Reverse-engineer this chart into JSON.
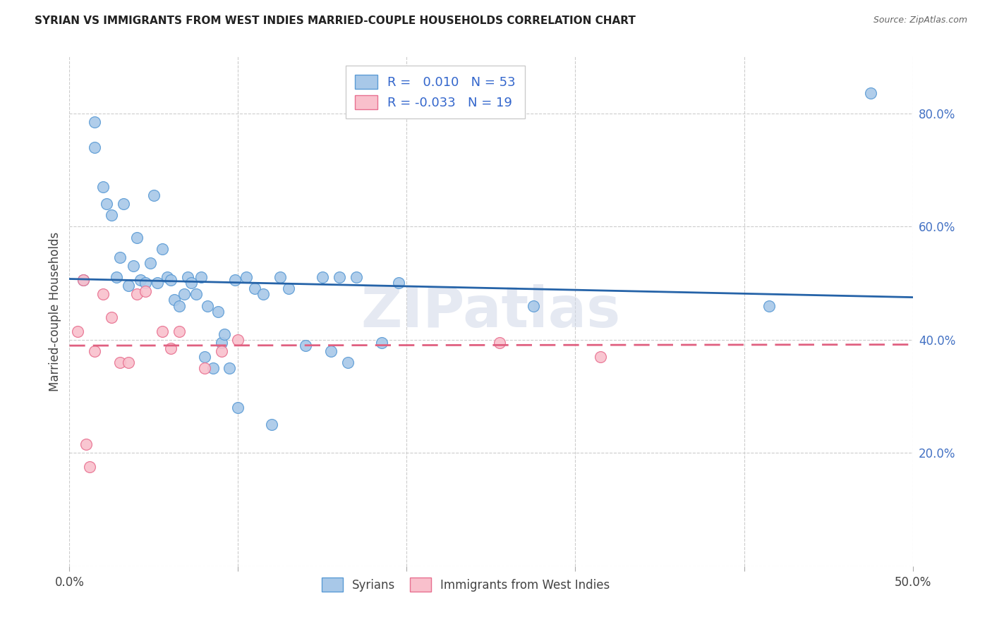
{
  "title": "SYRIAN VS IMMIGRANTS FROM WEST INDIES MARRIED-COUPLE HOUSEHOLDS CORRELATION CHART",
  "source": "Source: ZipAtlas.com",
  "ylabel": "Married-couple Households",
  "xlabel_syrians": "Syrians",
  "xlabel_wi": "Immigrants from West Indies",
  "xlim": [
    0.0,
    0.5
  ],
  "ylim": [
    0.0,
    0.9
  ],
  "xticks": [
    0.0,
    0.1,
    0.2,
    0.3,
    0.4,
    0.5
  ],
  "xtick_labels": [
    "0.0%",
    "",
    "",
    "",
    "",
    "50.0%"
  ],
  "yticks": [
    0.0,
    0.2,
    0.4,
    0.6,
    0.8
  ],
  "ytick_right_labels": [
    "",
    "20.0%",
    "40.0%",
    "60.0%",
    "80.0%"
  ],
  "blue_R": 0.01,
  "blue_N": 53,
  "pink_R": -0.033,
  "pink_N": 19,
  "blue_dot_color": "#a8c8e8",
  "blue_dot_edge": "#5b9bd5",
  "pink_dot_color": "#f9c0cc",
  "pink_dot_edge": "#e87090",
  "blue_line_color": "#2563a8",
  "pink_line_color": "#e06080",
  "legend_text_color": "#3366cc",
  "watermark": "ZIPatlas",
  "syrians_x": [
    0.008,
    0.015,
    0.015,
    0.02,
    0.022,
    0.025,
    0.028,
    0.03,
    0.032,
    0.035,
    0.038,
    0.04,
    0.042,
    0.045,
    0.048,
    0.05,
    0.052,
    0.055,
    0.058,
    0.06,
    0.062,
    0.065,
    0.068,
    0.07,
    0.072,
    0.075,
    0.078,
    0.08,
    0.082,
    0.085,
    0.088,
    0.09,
    0.092,
    0.095,
    0.098,
    0.1,
    0.105,
    0.11,
    0.115,
    0.12,
    0.125,
    0.13,
    0.14,
    0.15,
    0.155,
    0.16,
    0.165,
    0.17,
    0.185,
    0.195,
    0.275,
    0.415,
    0.475
  ],
  "syrians_y": [
    0.505,
    0.785,
    0.74,
    0.67,
    0.64,
    0.62,
    0.51,
    0.545,
    0.64,
    0.495,
    0.53,
    0.58,
    0.505,
    0.5,
    0.535,
    0.655,
    0.5,
    0.56,
    0.51,
    0.505,
    0.47,
    0.46,
    0.48,
    0.51,
    0.5,
    0.48,
    0.51,
    0.37,
    0.46,
    0.35,
    0.45,
    0.395,
    0.41,
    0.35,
    0.505,
    0.28,
    0.51,
    0.49,
    0.48,
    0.25,
    0.51,
    0.49,
    0.39,
    0.51,
    0.38,
    0.51,
    0.36,
    0.51,
    0.395,
    0.5,
    0.46,
    0.46,
    0.835
  ],
  "wi_x": [
    0.005,
    0.008,
    0.01,
    0.012,
    0.015,
    0.02,
    0.025,
    0.03,
    0.035,
    0.04,
    0.045,
    0.055,
    0.06,
    0.065,
    0.08,
    0.09,
    0.1,
    0.255,
    0.315
  ],
  "wi_y": [
    0.415,
    0.505,
    0.215,
    0.175,
    0.38,
    0.48,
    0.44,
    0.36,
    0.36,
    0.48,
    0.485,
    0.415,
    0.385,
    0.415,
    0.35,
    0.38,
    0.4,
    0.395,
    0.37
  ]
}
